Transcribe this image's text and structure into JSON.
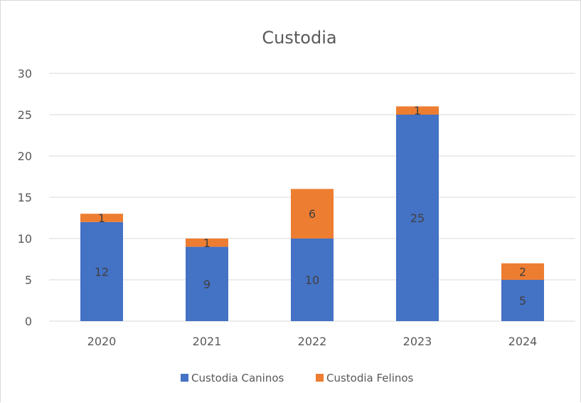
{
  "chart_data": {
    "type": "bar",
    "stacked": true,
    "title": "Custodia",
    "xlabel": "",
    "ylabel": "",
    "categories": [
      "2020",
      "2021",
      "2022",
      "2023",
      "2024"
    ],
    "series": [
      {
        "name": "Custodia Caninos",
        "values": [
          12,
          9,
          10,
          25,
          5
        ],
        "color": "#4472c4"
      },
      {
        "name": "Custodia Felinos",
        "values": [
          1,
          1,
          6,
          1,
          2
        ],
        "color": "#ed7d31"
      }
    ],
    "ylim": [
      0,
      30
    ],
    "yticks": [
      0,
      5,
      10,
      15,
      20,
      25,
      30
    ],
    "grid": true,
    "legend_position": "bottom",
    "data_labels": true,
    "colors": {
      "grid": "#d9d9d9",
      "axis": "#d9d9d9",
      "text": "#595959",
      "label": "#404040"
    }
  }
}
